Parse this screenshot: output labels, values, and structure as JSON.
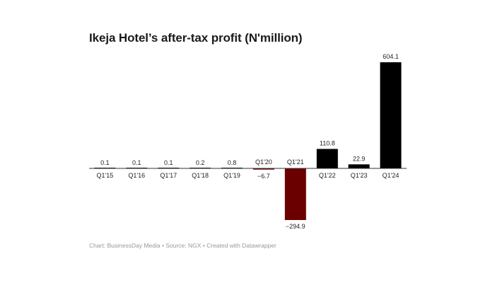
{
  "chart": {
    "title": "Ikeja Hotel’s after-tax profit (N'million)",
    "footer": "Chart: BusinessDay Media • Source: NGX • Created with Datawrapper"
  },
  "colors": {
    "positive": "#000000",
    "negative": "#6b0000",
    "axis": "#333333",
    "label": "#222222"
  },
  "chart_data": {
    "type": "bar",
    "title": "Ikeja Hotel’s after-tax profit (N'million)",
    "xlabel": "",
    "ylabel": "",
    "grid": false,
    "legend": "none",
    "ylim": [
      -294.9,
      604.1
    ],
    "categories": [
      "Q1'15",
      "Q1'16",
      "Q1'17",
      "Q1'18",
      "Q1'19",
      "Q1'20",
      "Q1'21",
      "Q1'22",
      "Q1'23",
      "Q1'24"
    ],
    "values": [
      0.1,
      0.1,
      0.1,
      0.2,
      0.8,
      -6.7,
      -294.9,
      110.8,
      22.9,
      604.1
    ],
    "value_labels": [
      "0.1",
      "0.1",
      "0.1",
      "0.2",
      "0.8",
      "−6.7",
      "−294.9",
      "110.8",
      "22.9",
      "604.1"
    ]
  }
}
